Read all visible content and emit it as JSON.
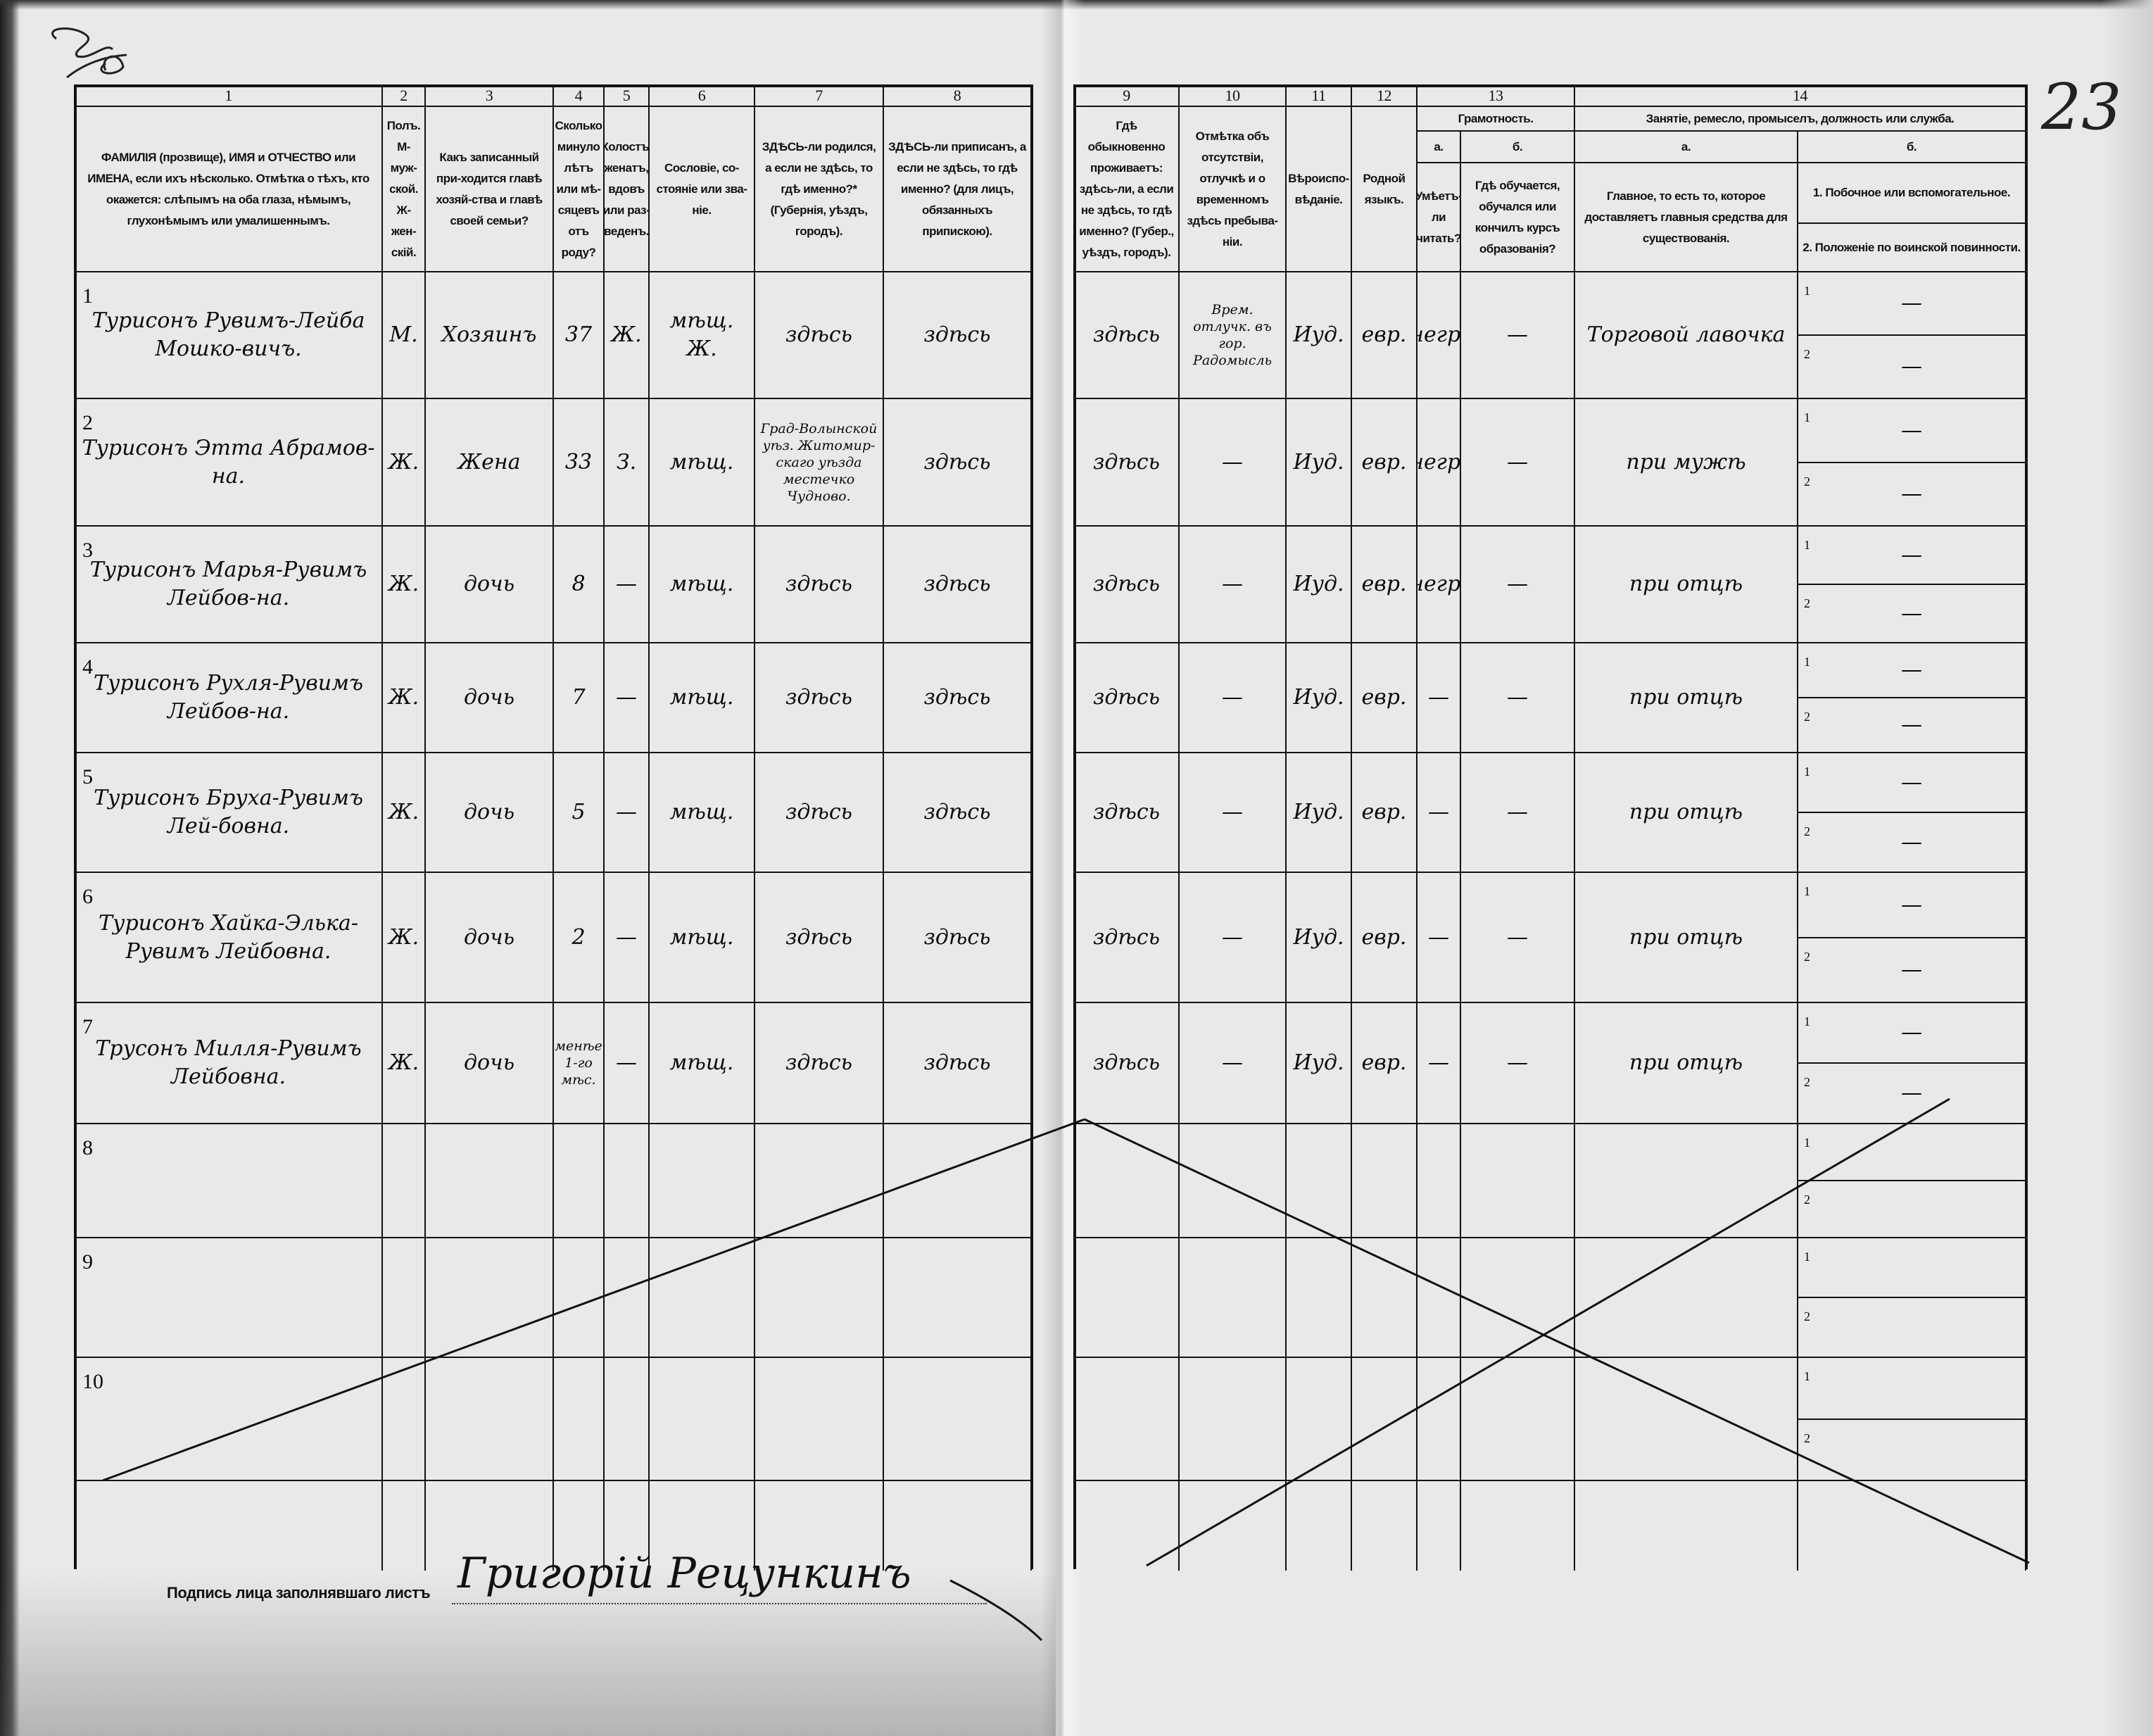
{
  "page_number": "23",
  "header": {
    "left": [
      {
        "num": "1",
        "text": "ФАМИЛІЯ (прозвище), ИМЯ и ОТЧЕСТВО или ИМЕНА, если ихъ нѣсколько. Отмѣтка о тѣхъ, кто окажется: слѣпымъ на оба глаза, нѣмымъ, глухонѣмымъ или умалишеннымъ."
      },
      {
        "num": "2",
        "text": "Полъ. М-муж-ской. Ж-жен-скій."
      },
      {
        "num": "3",
        "text": "Какъ записанный при-ходится главѣ хозяй-ства и главѣ своей семьи?"
      },
      {
        "num": "4",
        "text": "Сколько минуло лѣтъ или мѣ-сяцевъ отъ роду?"
      },
      {
        "num": "5",
        "text": "Холостъ, женатъ, вдовъ или раз-веденъ."
      },
      {
        "num": "6",
        "text": "Сословіе, со-стояніе или зва-ніе."
      },
      {
        "num": "7",
        "text": "ЗДѢСЬ-ли родился, а если не здѣсь, то гдѣ именно?* (Губернія, уѣздъ, городъ)."
      },
      {
        "num": "8",
        "text": "ЗДѢСЬ-ли приписанъ, а если не здѣсь, то гдѣ именно? (для лицъ, обязанныхъ припискою)."
      }
    ],
    "right": [
      {
        "num": "9",
        "text": "Гдѣ обыкновенно проживаетъ: здѣсь-ли, а если не здѣсь, то гдѣ именно? (Губер., уѣздъ, городъ)."
      },
      {
        "num": "10",
        "text": "Отмѣтка объ отсутствіи, отлучкѣ и о временномъ здѣсь пребыва-ніи."
      },
      {
        "num": "11",
        "text": "Вѣроиспо-вѣданіе."
      },
      {
        "num": "12",
        "text": "Родной языкъ."
      }
    ],
    "literacy": {
      "num": "13",
      "title": "Грамотность.",
      "a_label": "а.",
      "a_text": "Умѣетъ-ли читать?",
      "b_label": "б.",
      "b_text": "Гдѣ обучается, обучался или кончилъ курсъ образованія?"
    },
    "occupation": {
      "num": "14",
      "title": "Занятіе, ремесло, промыселъ, должность или служба.",
      "a_label": "а.",
      "a_text": "Главное, то есть то, которое доставляетъ главныя средства для существованія.",
      "b_label": "б.",
      "b_text_1": "1. Побочное или вспомогательное.",
      "b_text_2": "2. Положеніе по воинской повинности."
    }
  },
  "rows": [
    {
      "n": "1",
      "name": "Турисонъ Рувимъ-Лейба Мошко-вичъ.",
      "sex": "М.",
      "relation": "Хозяинъ",
      "age": "37",
      "marital": "Ж.",
      "estate": "мѣщ. Ж.",
      "born": "здѣсь",
      "registered": "здѣсь",
      "resides": "здѣсь",
      "absence": "Врем. отлучк. въ гор. Радомысль",
      "religion": "Иуд.",
      "language": "евр.",
      "reads": "негр.",
      "schooling": "—",
      "occupation": "Торговой лавочка",
      "side_1": "—",
      "side_2": "—"
    },
    {
      "n": "2",
      "name": "Турисонъ Этта Абрамов-на.",
      "sex": "Ж.",
      "relation": "Жена",
      "age": "33",
      "marital": "З.",
      "estate": "мѣщ.",
      "born": "Град-Волынской уѣз. Житомир-скаго уѣзда местечко Чудново.",
      "registered": "здѣсь",
      "resides": "здѣсь",
      "absence": "—",
      "religion": "Иуд.",
      "language": "евр.",
      "reads": "негр.",
      "schooling": "—",
      "occupation": "при мужѣ",
      "side_1": "—",
      "side_2": "—"
    },
    {
      "n": "3",
      "name": "Турисонъ Марья-Рувимъ Лейбов-на.",
      "sex": "Ж.",
      "relation": "дочь",
      "age": "8",
      "marital": "—",
      "estate": "мѣщ.",
      "born": "здѣсь",
      "registered": "здѣсь",
      "resides": "здѣсь",
      "absence": "—",
      "religion": "Иуд.",
      "language": "евр.",
      "reads": "негр.",
      "schooling": "—",
      "occupation": "при отцѣ",
      "side_1": "—",
      "side_2": "—"
    },
    {
      "n": "4",
      "name": "Турисонъ Рухля-Рувимъ Лейбов-на.",
      "sex": "Ж.",
      "relation": "дочь",
      "age": "7",
      "marital": "—",
      "estate": "мѣщ.",
      "born": "здѣсь",
      "registered": "здѣсь",
      "resides": "здѣсь",
      "absence": "—",
      "religion": "Иуд.",
      "language": "евр.",
      "reads": "—",
      "schooling": "—",
      "occupation": "при отцѣ",
      "side_1": "—",
      "side_2": "—"
    },
    {
      "n": "5",
      "name": "Турисонъ Бруха-Рувимъ Лей-бовна.",
      "sex": "Ж.",
      "relation": "дочь",
      "age": "5",
      "marital": "—",
      "estate": "мѣщ.",
      "born": "здѣсь",
      "registered": "здѣсь",
      "resides": "здѣсь",
      "absence": "—",
      "religion": "Иуд.",
      "language": "евр.",
      "reads": "—",
      "schooling": "—",
      "occupation": "при отцѣ",
      "side_1": "—",
      "side_2": "—"
    },
    {
      "n": "6",
      "name": "Турисонъ Хайка-Элька-Рувимъ Лейбовна.",
      "sex": "Ж.",
      "relation": "дочь",
      "age": "2",
      "marital": "—",
      "estate": "мѣщ.",
      "born": "здѣсь",
      "registered": "здѣсь",
      "resides": "здѣсь",
      "absence": "—",
      "religion": "Иуд.",
      "language": "евр.",
      "reads": "—",
      "schooling": "—",
      "occupation": "при отцѣ",
      "side_1": "—",
      "side_2": "—"
    },
    {
      "n": "7",
      "name": "Трусонъ Милля-Рувимъ Лейбовна.",
      "sex": "Ж.",
      "relation": "дочь",
      "age": "менѣе 1-го мѣс.",
      "marital": "—",
      "estate": "мѣщ.",
      "born": "здѣсь",
      "registered": "здѣсь",
      "resides": "здѣсь",
      "absence": "—",
      "religion": "Иуд.",
      "language": "евр.",
      "reads": "—",
      "schooling": "—",
      "occupation": "при отцѣ",
      "side_1": "—",
      "side_2": "—"
    },
    {
      "n": "8"
    },
    {
      "n": "9"
    },
    {
      "n": "10"
    }
  ],
  "sub_labels": {
    "one": "1",
    "two": "2"
  },
  "signature": {
    "label": "Подпись лица заполнявшаго листъ",
    "value": "Григорій Рецункинъ"
  }
}
